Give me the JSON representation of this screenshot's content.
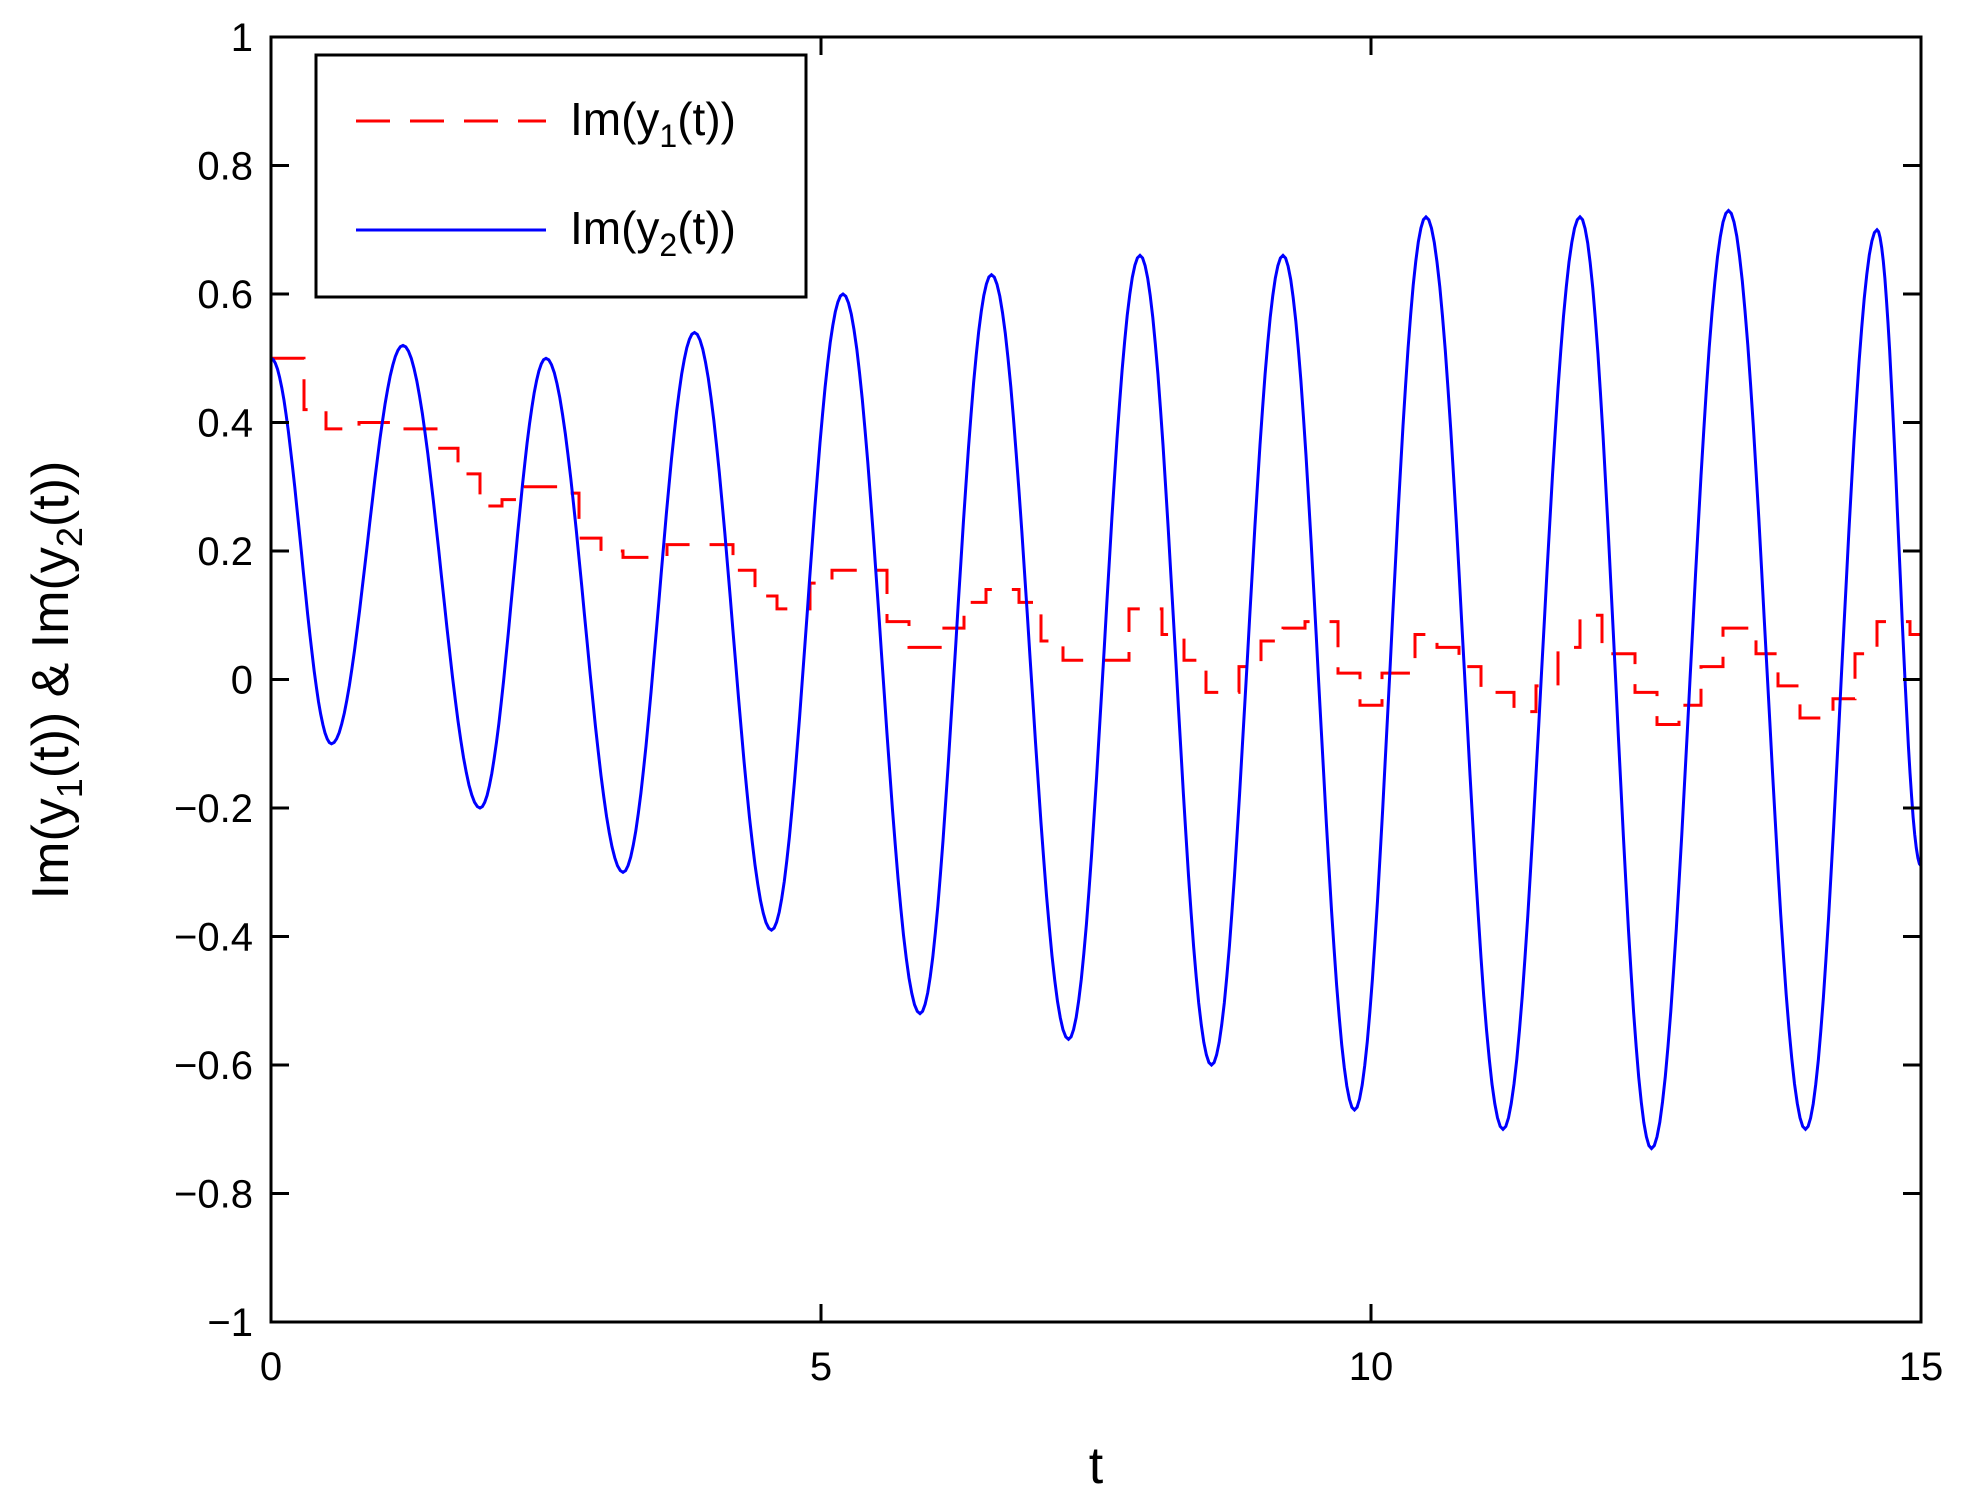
{
  "chart_data": {
    "type": "line",
    "xlabel": "t",
    "ylabel_parts": {
      "p1": "Im(y",
      "s1": "1",
      "p2": "(t)) & Im(y",
      "s2": "2",
      "p3": "(t))"
    },
    "xlim": [
      0,
      15
    ],
    "ylim": [
      -1,
      1
    ],
    "xticks": [
      0,
      5,
      10,
      15
    ],
    "xtick_labels": [
      "0",
      "5",
      "10",
      "15"
    ],
    "yticks": [
      -1,
      -0.8,
      -0.6,
      -0.4,
      -0.2,
      0,
      0.2,
      0.4,
      0.6,
      0.8,
      1
    ],
    "ytick_labels": [
      "−1",
      "−0.8",
      "−0.6",
      "−0.4",
      "−0.2",
      "0",
      "0.2",
      "0.4",
      "0.6",
      "0.8",
      "1"
    ],
    "grid": false,
    "legend_position": "top-left",
    "series": [
      {
        "legend": {
          "pre": "Im(y",
          "sub": "1",
          "post": "(t))"
        },
        "color": "#ff0000",
        "dash": "dashed",
        "steps": [
          [
            0.0,
            0.5
          ],
          [
            0.3,
            0.42
          ],
          [
            0.5,
            0.39
          ],
          [
            0.8,
            0.4
          ],
          [
            1.2,
            0.39
          ],
          [
            1.5,
            0.36
          ],
          [
            1.7,
            0.32
          ],
          [
            1.9,
            0.27
          ],
          [
            2.1,
            0.28
          ],
          [
            2.3,
            0.3
          ],
          [
            2.7,
            0.29
          ],
          [
            2.8,
            0.22
          ],
          [
            3.0,
            0.2
          ],
          [
            3.2,
            0.19
          ],
          [
            3.5,
            0.19
          ],
          [
            3.6,
            0.21
          ],
          [
            4.1,
            0.21
          ],
          [
            4.2,
            0.17
          ],
          [
            4.4,
            0.13
          ],
          [
            4.6,
            0.11
          ],
          [
            4.9,
            0.15
          ],
          [
            5.1,
            0.17
          ],
          [
            5.4,
            0.17
          ],
          [
            5.6,
            0.09
          ],
          [
            5.8,
            0.05
          ],
          [
            6.1,
            0.08
          ],
          [
            6.3,
            0.12
          ],
          [
            6.5,
            0.14
          ],
          [
            6.8,
            0.12
          ],
          [
            7.0,
            0.06
          ],
          [
            7.2,
            0.03
          ],
          [
            7.6,
            0.03
          ],
          [
            7.8,
            0.11
          ],
          [
            8.1,
            0.07
          ],
          [
            8.3,
            0.03
          ],
          [
            8.5,
            -0.02
          ],
          [
            8.8,
            0.02
          ],
          [
            9.0,
            0.06
          ],
          [
            9.2,
            0.08
          ],
          [
            9.4,
            0.09
          ],
          [
            9.7,
            0.01
          ],
          [
            9.9,
            -0.04
          ],
          [
            10.1,
            0.01
          ],
          [
            10.4,
            0.07
          ],
          [
            10.6,
            0.05
          ],
          [
            10.8,
            0.02
          ],
          [
            11.0,
            -0.02
          ],
          [
            11.3,
            -0.05
          ],
          [
            11.5,
            -0.01
          ],
          [
            11.7,
            0.05
          ],
          [
            11.9,
            0.1
          ],
          [
            12.1,
            0.04
          ],
          [
            12.4,
            -0.02
          ],
          [
            12.6,
            -0.07
          ],
          [
            12.8,
            -0.04
          ],
          [
            13.0,
            0.02
          ],
          [
            13.2,
            0.08
          ],
          [
            13.5,
            0.04
          ],
          [
            13.7,
            -0.01
          ],
          [
            13.9,
            -0.06
          ],
          [
            14.2,
            -0.03
          ],
          [
            14.4,
            0.04
          ],
          [
            14.6,
            0.09
          ],
          [
            14.9,
            0.07
          ]
        ],
        "x_end": 15.0
      },
      {
        "legend": {
          "pre": "Im(y",
          "sub": "2",
          "post": "(t))"
        },
        "color": "#0000ff",
        "dash": "solid",
        "extrema": [
          [
            0.0,
            0.5
          ],
          [
            0.55,
            -0.1
          ],
          [
            1.2,
            0.52
          ],
          [
            1.9,
            -0.2
          ],
          [
            2.5,
            0.5
          ],
          [
            3.2,
            -0.3
          ],
          [
            3.85,
            0.54
          ],
          [
            4.55,
            -0.39
          ],
          [
            5.2,
            0.6
          ],
          [
            5.9,
            -0.52
          ],
          [
            6.55,
            0.63
          ],
          [
            7.25,
            -0.56
          ],
          [
            7.9,
            0.66
          ],
          [
            8.55,
            -0.6
          ],
          [
            9.2,
            0.66
          ],
          [
            9.85,
            -0.67
          ],
          [
            10.5,
            0.72
          ],
          [
            11.2,
            -0.7
          ],
          [
            11.9,
            0.72
          ],
          [
            12.55,
            -0.73
          ],
          [
            13.25,
            0.73
          ],
          [
            13.95,
            -0.7
          ],
          [
            14.6,
            0.7
          ],
          [
            15.0,
            -0.29
          ]
        ]
      }
    ]
  }
}
